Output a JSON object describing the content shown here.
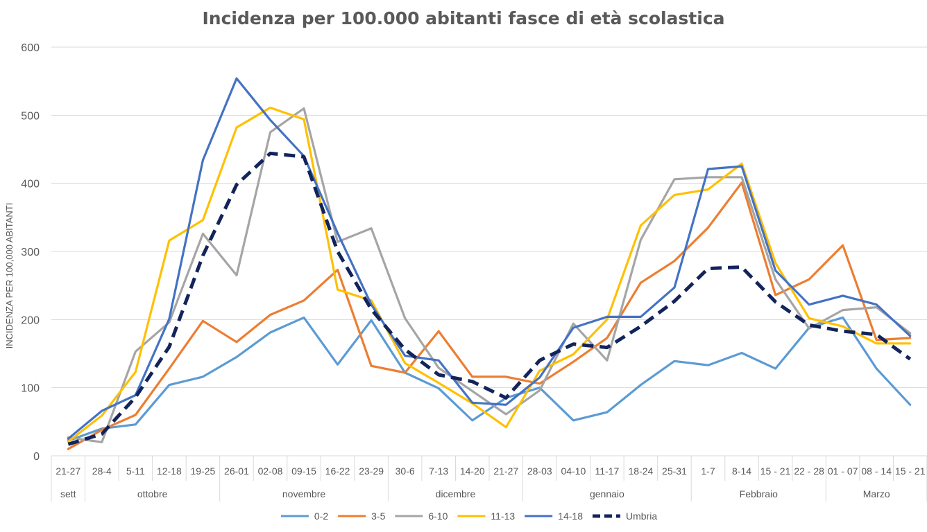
{
  "chart_data": {
    "type": "line",
    "title": "Incidenza per 100.000 abitanti fasce di età scolastica",
    "ylabel": "INCIDENZA PER 100,000 ABITANTI",
    "xlabel": "",
    "ylim": [
      0,
      600
    ],
    "yticks": [
      0,
      100,
      200,
      300,
      400,
      500,
      600
    ],
    "grid": true,
    "legend_position": "bottom",
    "categories": [
      "21-27",
      "28-4",
      "5-11",
      "12-18",
      "19-25",
      "26-01",
      "02-08",
      "09-15",
      "16-22",
      "23-29",
      "30-6",
      "7-13",
      "14-20",
      "21-27",
      "28-03",
      "04-10",
      "11-17",
      "18-24",
      "25-31",
      "1-7",
      "8-14",
      "15 - 21",
      "22 - 28",
      "01 - 07",
      "08 - 14",
      "15 - 21"
    ],
    "groups": [
      {
        "label": "sett",
        "start": 0,
        "end": 0
      },
      {
        "label": "ottobre",
        "start": 1,
        "end": 4
      },
      {
        "label": "novembre",
        "start": 5,
        "end": 9
      },
      {
        "label": "dicembre",
        "start": 10,
        "end": 13
      },
      {
        "label": "gennaio",
        "start": 14,
        "end": 18
      },
      {
        "label": "Febbraio",
        "start": 19,
        "end": 22
      },
      {
        "label": "Marzo",
        "start": 23,
        "end": 25
      }
    ],
    "series": [
      {
        "name": "0-2",
        "color": "#5B9BD5",
        "dashed": false,
        "values": [
          22,
          40,
          46,
          104,
          116,
          145,
          181,
          203,
          134,
          199,
          122,
          99,
          52,
          85,
          100,
          52,
          64,
          104,
          139,
          133,
          151,
          128,
          188,
          203,
          128,
          75
        ]
      },
      {
        "name": "3-5",
        "color": "#ED7D31",
        "dashed": false,
        "values": [
          10,
          38,
          60,
          128,
          198,
          167,
          207,
          228,
          273,
          132,
          122,
          183,
          116,
          116,
          106,
          138,
          173,
          254,
          286,
          335,
          401,
          236,
          259,
          309,
          170,
          173
        ]
      },
      {
        "name": "6-10",
        "color": "#A5A5A5",
        "dashed": false,
        "values": [
          27,
          20,
          153,
          196,
          326,
          265,
          475,
          510,
          314,
          334,
          202,
          129,
          95,
          61,
          96,
          194,
          140,
          317,
          406,
          409,
          409,
          259,
          187,
          214,
          218,
          180
        ]
      },
      {
        "name": "11-13",
        "color": "#FFC000",
        "dashed": false,
        "values": [
          21,
          59,
          123,
          316,
          346,
          482,
          511,
          494,
          244,
          228,
          136,
          107,
          77,
          42,
          125,
          149,
          200,
          338,
          383,
          391,
          429,
          283,
          202,
          190,
          165,
          165
        ]
      },
      {
        "name": "14-18",
        "color": "#4472C4",
        "dashed": false,
        "values": [
          25,
          66,
          89,
          201,
          434,
          554,
          493,
          440,
          327,
          222,
          147,
          140,
          78,
          75,
          115,
          188,
          204,
          204,
          247,
          421,
          425,
          272,
          222,
          235,
          222,
          176
        ]
      },
      {
        "name": "Umbria",
        "color": "#12245B",
        "dashed": true,
        "values": [
          17,
          32,
          86,
          160,
          294,
          398,
          444,
          439,
          300,
          215,
          156,
          119,
          109,
          85,
          140,
          164,
          159,
          190,
          227,
          275,
          277,
          226,
          192,
          183,
          178,
          142
        ]
      }
    ]
  }
}
